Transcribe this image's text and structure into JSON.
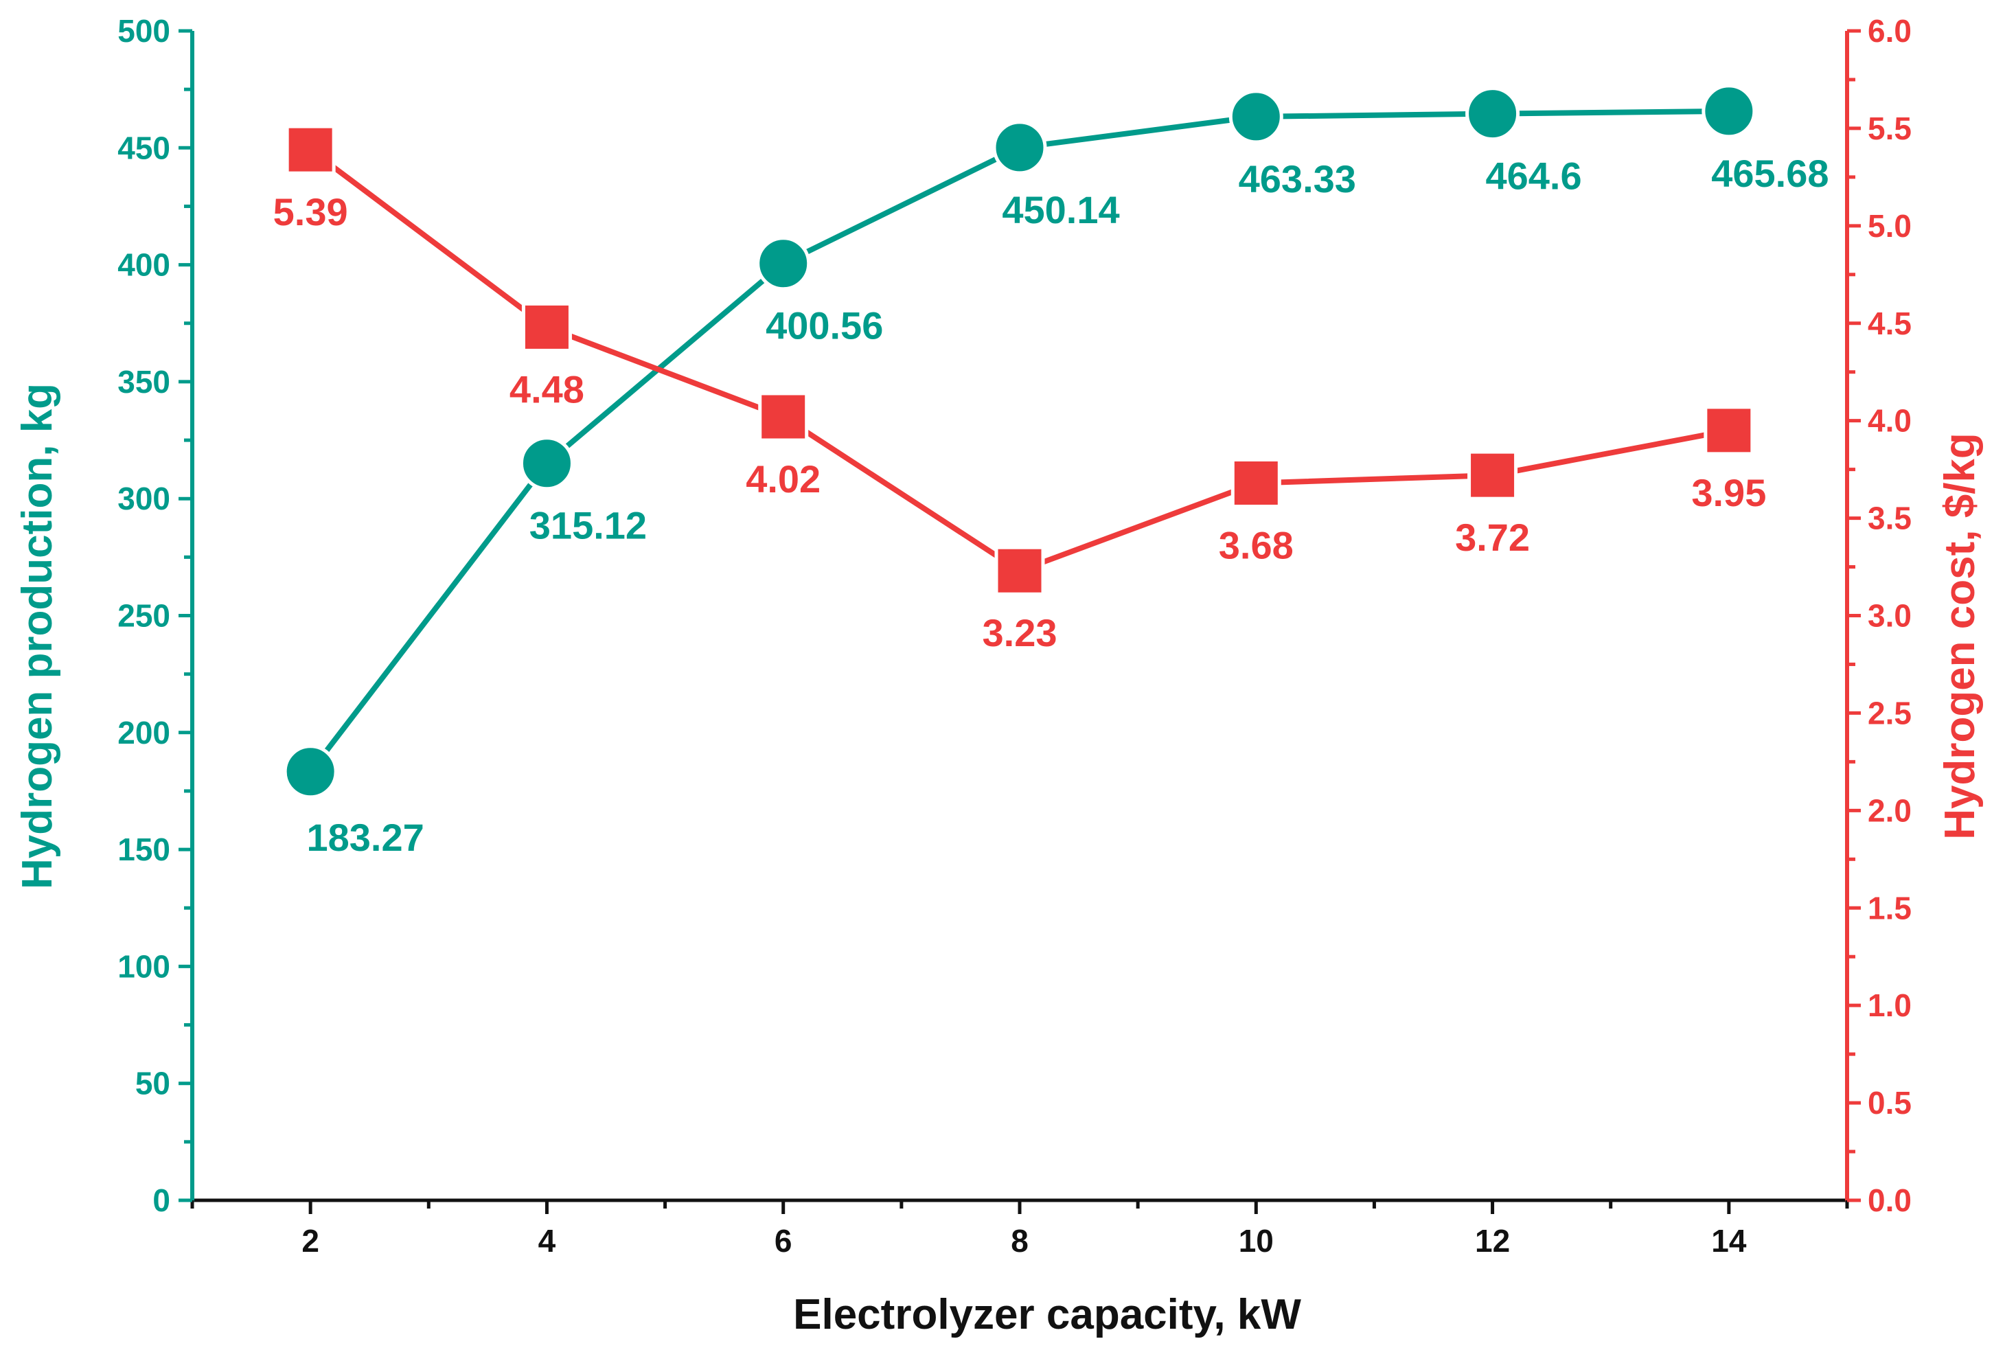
{
  "chart_data": {
    "type": "line",
    "title": "",
    "xlabel": "Electrolyzer capacity, kW",
    "x": [
      2,
      4,
      6,
      8,
      10,
      12,
      14
    ],
    "xlim": [
      1,
      15
    ],
    "xticks": [
      "2",
      "4",
      "6",
      "8",
      "10",
      "12",
      "14"
    ],
    "series": [
      {
        "name": "Hydrogen production",
        "axis": "left",
        "marker": "circle",
        "color": "#009B8B",
        "values": [
          183.27,
          315.12,
          400.56,
          450.14,
          463.33,
          464.6,
          465.68
        ],
        "labels": [
          "183.27",
          "315.12",
          "400.56",
          "450.14",
          "463.33",
          "464.6",
          "465.68"
        ]
      },
      {
        "name": "Hydrogen cost",
        "axis": "right",
        "marker": "square",
        "color": "#EE3B3B",
        "values": [
          5.39,
          4.48,
          4.02,
          3.23,
          3.68,
          3.72,
          3.95
        ],
        "labels": [
          "5.39",
          "4.48",
          "4.02",
          "3.23",
          "3.68",
          "3.72",
          "3.95"
        ]
      }
    ],
    "y_left": {
      "label": "Hydrogen production, kg",
      "ylim": [
        0,
        500
      ],
      "ticks": [
        "0",
        "50",
        "100",
        "150",
        "200",
        "250",
        "300",
        "350",
        "400",
        "450",
        "500"
      ],
      "color": "#009B8B"
    },
    "y_right": {
      "label": "Hydrogen cost, $/kg",
      "ylim": [
        0,
        6
      ],
      "ticks": [
        "0.0",
        "0.5",
        "1.0",
        "1.5",
        "2.0",
        "2.5",
        "3.0",
        "3.5",
        "4.0",
        "4.5",
        "5.0",
        "5.5",
        "6.0"
      ],
      "color": "#EE3B3B"
    },
    "grid": false,
    "legend": "none"
  }
}
